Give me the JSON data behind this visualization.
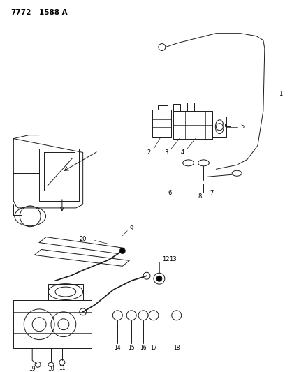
{
  "title": "7772  1588 A",
  "bg_color": "#ffffff",
  "lc": "#1a1a1a",
  "fig_width": 4.28,
  "fig_height": 5.33,
  "dpi": 100
}
